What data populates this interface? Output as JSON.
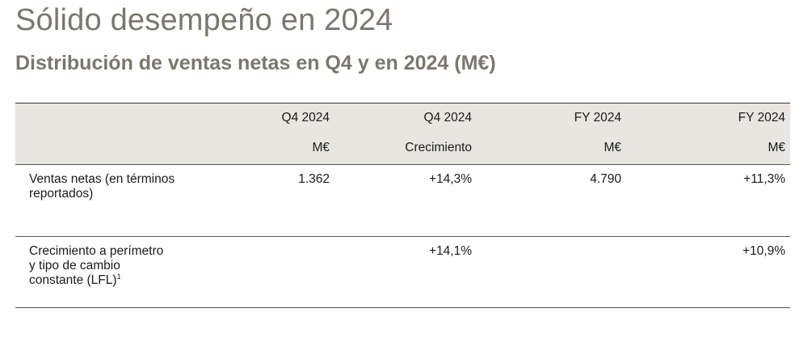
{
  "title": "Sólido desempeño en 2024",
  "subtitle": "Distribución de ventas netas en Q4 y en 2024 (M€)",
  "table": {
    "headers": [
      {
        "line1": "Q4 2024",
        "line2": "M€"
      },
      {
        "line1": "Q4 2024",
        "line2": "Crecimiento"
      },
      {
        "line1": "FY 2024",
        "line2": "M€"
      },
      {
        "line1": "FY 2024",
        "line2": "M€"
      }
    ],
    "rows": [
      {
        "label": "Ventas netas (en términos reportados)",
        "footnote": "",
        "values": [
          "1.362",
          "+14,3%",
          "4.790",
          "+11,3%"
        ]
      },
      {
        "label": "Crecimiento a perímetro y tipo de cambio constante (LFL)",
        "footnote": "1",
        "values": [
          "",
          "+14,1%",
          "",
          "+10,9%"
        ]
      }
    ]
  }
}
